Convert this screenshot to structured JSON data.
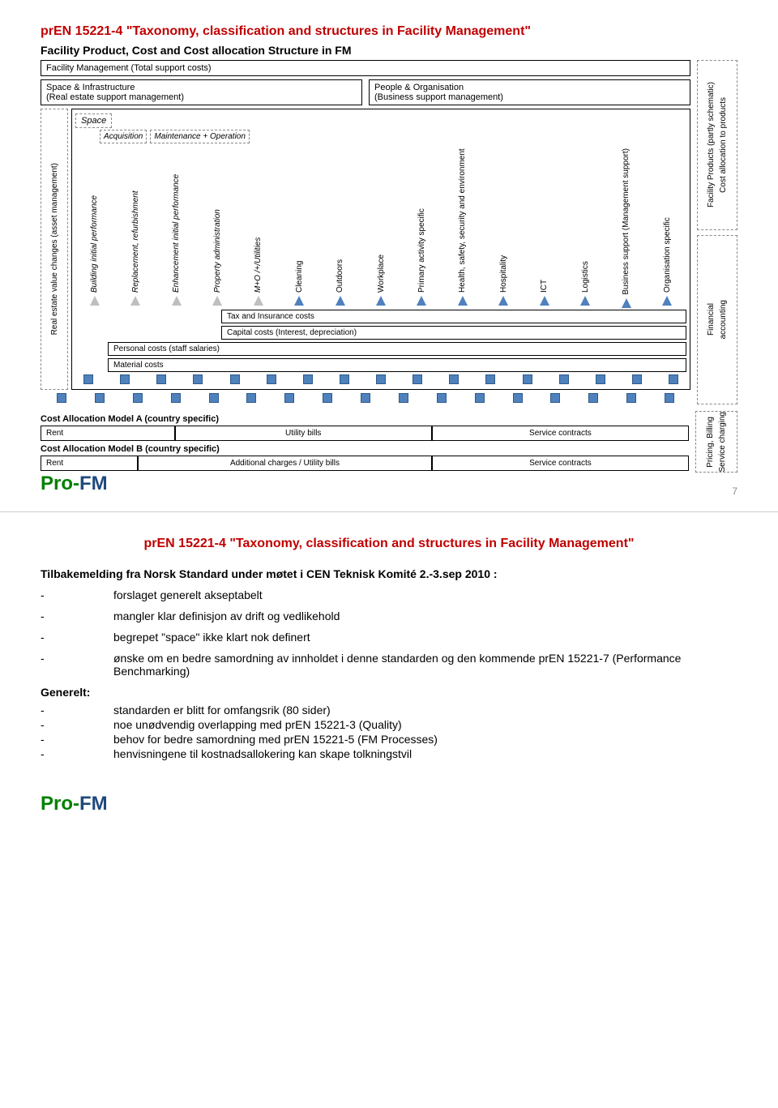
{
  "slide1": {
    "title": "prEN 15221-4 \"Taxonomy, classification and structures in Facility Management\"",
    "subtitle": "Facility Product, Cost and Cost allocation Structure in FM",
    "fm_total": "Facility Management (Total support costs)",
    "space_infra": "Space & Infrastructure\n(Real estate support management)",
    "people_org": "People & Organisation\n(Business support management)",
    "leftmost_v": "Real estate value changes (asset management)",
    "space_label": "Space",
    "acquisition": "Acquisition",
    "maintenance": "Maintenance + Operation",
    "columns": [
      {
        "label": "Building initial performance",
        "italic": true,
        "arrow": "grey"
      },
      {
        "label": "Replacement, refurbishment",
        "italic": true,
        "arrow": "grey"
      },
      {
        "label": "Enhancement initial performance",
        "italic": true,
        "arrow": "grey"
      },
      {
        "label": "Property administration",
        "italic": true,
        "arrow": "grey"
      },
      {
        "label": "M+O /+/Utilities",
        "italic": true,
        "arrow": "grey"
      },
      {
        "label": "Cleaning",
        "italic": false,
        "arrow": "blue"
      },
      {
        "label": "Outdoors",
        "italic": false,
        "arrow": "blue"
      },
      {
        "label": "Workplace",
        "italic": false,
        "arrow": "blue"
      },
      {
        "label": "Primary activity specific",
        "italic": false,
        "arrow": "blue"
      },
      {
        "label": "Health, safety, security and environment",
        "italic": false,
        "arrow": "blue"
      },
      {
        "label": "Hospitality",
        "italic": false,
        "arrow": "blue"
      },
      {
        "label": "ICT",
        "italic": false,
        "arrow": "blue"
      },
      {
        "label": "Logistics",
        "italic": false,
        "arrow": "blue"
      },
      {
        "label": "Business support (Management support)",
        "italic": false,
        "arrow": "blue"
      },
      {
        "label": "Organisation specific",
        "italic": false,
        "arrow": "blue"
      }
    ],
    "tax_ins": "Tax and Insurance costs",
    "capital": "Capital costs (Interest, depreciation)",
    "personal": "Personal costs (staff salaries)",
    "material": "Material costs",
    "right_v1": "Facility Products (partly schematic)",
    "right_v2": "Cost allocation to products",
    "right_v3": "Financial",
    "right_v4": "accounting",
    "alloc_a_title": "Cost Allocation Model A (country specific)",
    "alloc_a": [
      "Rent",
      "Utility bills",
      "Service contracts"
    ],
    "alloc_b_title": "Cost Allocation Model B (country specific)",
    "alloc_b": [
      "Rent",
      "Additional charges / Utility bills",
      "Service contracts"
    ],
    "right_v5": "Pricing, Billing",
    "right_v6": "Service charging",
    "square_count": 17,
    "pagenum": "7",
    "colors": {
      "title": "#c00000",
      "arrow_grey": "#bfbfbf",
      "arrow_blue": "#4f81bd",
      "square": "#4f81bd",
      "logo_pro": "#008000",
      "logo_fm": "#1f497d"
    }
  },
  "slide2": {
    "title": "prEN 15221-4 \"Taxonomy, classification and structures in Facility Management\"",
    "heading": "Tilbakemelding fra Norsk Standard under møtet i CEN Teknisk Komité 2.-3.sep 2010 :",
    "bullets": [
      "forslaget generelt akseptabelt",
      "mangler klar definisjon av drift og vedlikehold",
      "begrepet \"space\" ikke klart nok definert",
      "ønske om en bedre samordning av innholdet i denne standarden og den kommende prEN 15221-7 (Performance Benchmarking)"
    ],
    "gen_title": "Generelt:",
    "gen_bullets": [
      "standarden er blitt for omfangsrik (80 sider)",
      "noe unødvendig overlapping med prEN 15221-3 (Quality)",
      "behov for bedre samordning med prEN 15221-5 (FM Processes)",
      "henvisningene til kostnadsallokering kan skape tolkningstvil"
    ]
  },
  "logo": {
    "pro": "Pro-",
    "fm": "FM"
  }
}
